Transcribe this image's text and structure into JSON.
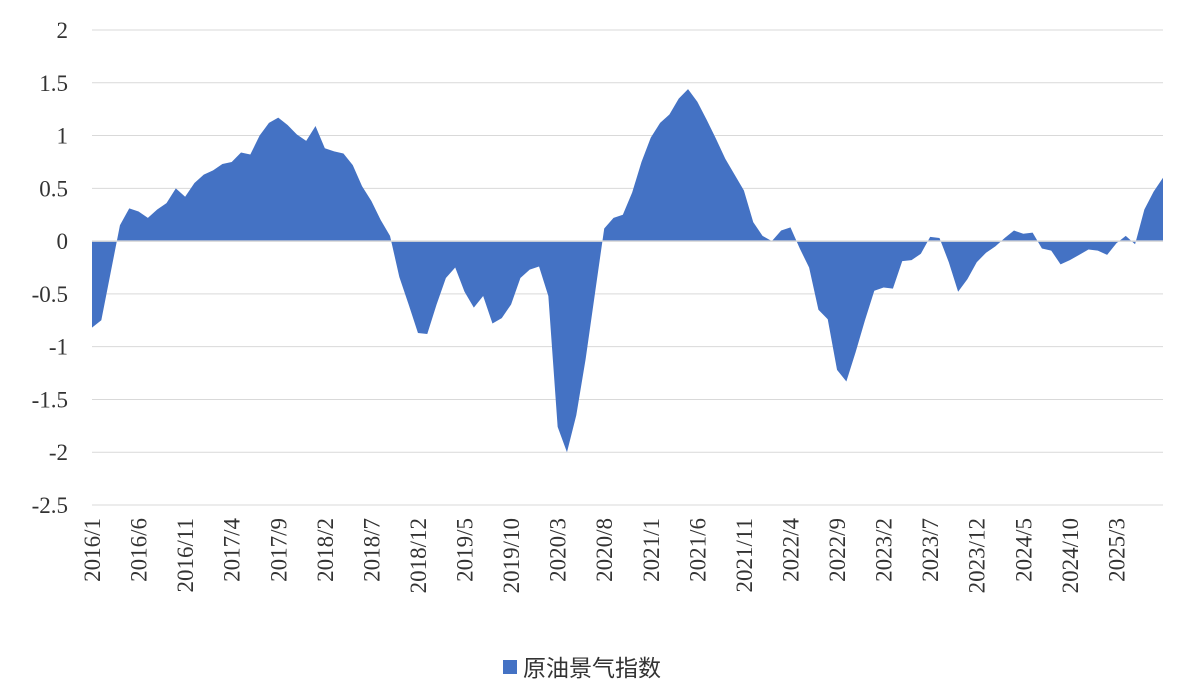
{
  "chart_data": {
    "type": "area",
    "ylim": [
      -2.5,
      2
    ],
    "y_ticks": [
      "2",
      "1.5",
      "1",
      "0.5",
      "0",
      "-0.5",
      "-1",
      "-1.5",
      "-2",
      "-2.5"
    ],
    "y_tick_values": [
      2,
      1.5,
      1,
      0.5,
      0,
      -0.5,
      -1,
      -1.5,
      -2,
      -2.5
    ],
    "x_tick_labels": [
      "2016/1",
      "2016/6",
      "2016/11",
      "2017/4",
      "2017/9",
      "2018/2",
      "2018/7",
      "2018/12",
      "2019/5",
      "2019/10",
      "2020/3",
      "2020/8",
      "2021/1",
      "2021/6",
      "2021/11",
      "2022/4",
      "2022/9",
      "2023/2",
      "2023/7",
      "2023/12",
      "2024/5",
      "2024/10",
      "2025/3"
    ],
    "grid": "horizontal",
    "legend_position": "bottom",
    "series": [
      {
        "name": "原油景气指数",
        "color": "#4472C4",
        "start": "2016/1",
        "values": [
          -0.82,
          -0.75,
          -0.3,
          0.15,
          0.31,
          0.28,
          0.22,
          0.3,
          0.36,
          0.5,
          0.42,
          0.55,
          0.63,
          0.67,
          0.73,
          0.75,
          0.84,
          0.82,
          1.0,
          1.12,
          1.17,
          1.1,
          1.01,
          0.95,
          1.09,
          0.88,
          0.85,
          0.83,
          0.72,
          0.52,
          0.38,
          0.2,
          0.05,
          -0.34,
          -0.6,
          -0.87,
          -0.88,
          -0.6,
          -0.35,
          -0.25,
          -0.48,
          -0.63,
          -0.52,
          -0.78,
          -0.73,
          -0.6,
          -0.35,
          -0.27,
          -0.24,
          -0.52,
          -1.76,
          -2.0,
          -1.65,
          -1.12,
          -0.5,
          0.12,
          0.22,
          0.25,
          0.46,
          0.75,
          0.98,
          1.12,
          1.2,
          1.35,
          1.44,
          1.32,
          1.15,
          0.97,
          0.78,
          0.63,
          0.48,
          0.18,
          0.05,
          0.0,
          0.1,
          0.13,
          -0.07,
          -0.25,
          -0.65,
          -0.74,
          -1.22,
          -1.33,
          -1.05,
          -0.75,
          -0.47,
          -0.44,
          -0.45,
          -0.19,
          -0.18,
          -0.12,
          0.04,
          0.03,
          -0.2,
          -0.48,
          -0.36,
          -0.2,
          -0.11,
          -0.05,
          0.03,
          0.1,
          0.07,
          0.08,
          -0.07,
          -0.09,
          -0.22,
          -0.18,
          -0.13,
          -0.08,
          -0.09,
          -0.13,
          -0.02,
          0.05,
          -0.03,
          0.3,
          0.47,
          0.6
        ]
      }
    ]
  }
}
